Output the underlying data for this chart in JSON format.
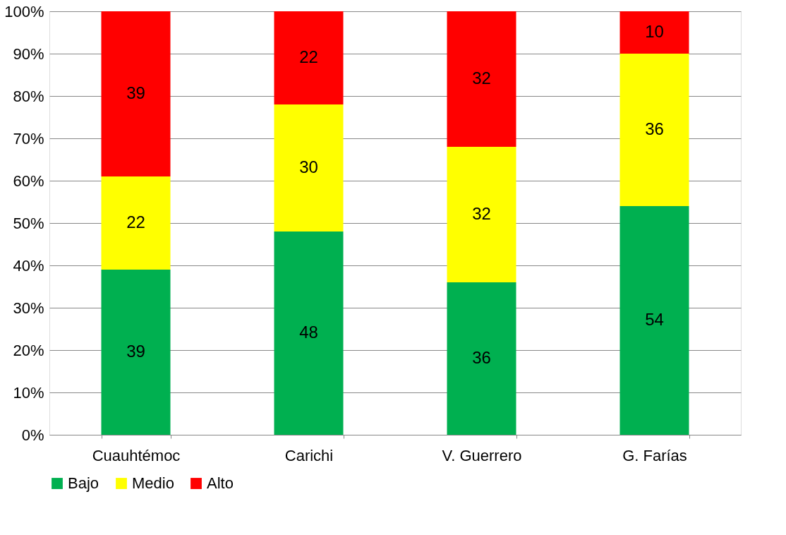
{
  "chart_data": {
    "type": "bar",
    "stacked": true,
    "categories": [
      "Cuauhtémoc",
      "Carichi",
      "V. Guerrero",
      "G. Farías"
    ],
    "series": [
      {
        "name": "Bajo",
        "color": "#00b050",
        "values": [
          39,
          48,
          36,
          54
        ]
      },
      {
        "name": "Medio",
        "color": "#ffff00",
        "values": [
          22,
          30,
          32,
          36
        ]
      },
      {
        "name": "Alto",
        "color": "#ff0000",
        "values": [
          39,
          22,
          32,
          10
        ]
      }
    ],
    "ylim": [
      0,
      100
    ],
    "yticks": [
      {
        "value": 0,
        "label": "0%"
      },
      {
        "value": 10,
        "label": "10%"
      },
      {
        "value": 20,
        "label": "20%"
      },
      {
        "value": 30,
        "label": "30%"
      },
      {
        "value": 40,
        "label": "40%"
      },
      {
        "value": 50,
        "label": "50%"
      },
      {
        "value": 60,
        "label": "60%"
      },
      {
        "value": 70,
        "label": "70%"
      },
      {
        "value": 80,
        "label": "80%"
      },
      {
        "value": 90,
        "label": "90%"
      },
      {
        "value": 100,
        "label": "100%"
      }
    ],
    "grid": "y",
    "legend": "bottom",
    "data_labels": true
  }
}
